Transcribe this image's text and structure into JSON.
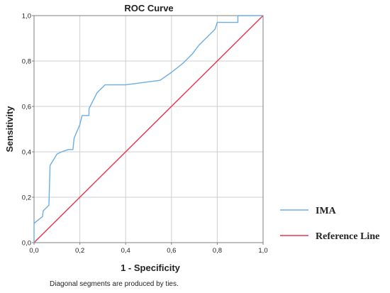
{
  "chart_data": {
    "type": "line",
    "title": "ROC Curve",
    "xlabel": "1 - Specificity",
    "ylabel": "Sensitivity",
    "xlim": [
      0,
      1
    ],
    "ylim": [
      0,
      1
    ],
    "grid": true,
    "legend_position": "right",
    "x_ticks": [
      "0,0",
      "0,2",
      "0,4",
      "0,6",
      "0,8",
      "1,0"
    ],
    "y_ticks": [
      "0,0",
      "0,2",
      "0,4",
      "0,6",
      "0,8",
      "1,0"
    ],
    "series": [
      {
        "name": "IMA",
        "color": "#6aaee6",
        "points": [
          [
            0.0,
            0.0
          ],
          [
            0.0,
            0.085
          ],
          [
            0.037,
            0.115
          ],
          [
            0.04,
            0.14
          ],
          [
            0.065,
            0.165
          ],
          [
            0.07,
            0.34
          ],
          [
            0.1,
            0.39
          ],
          [
            0.12,
            0.4
          ],
          [
            0.15,
            0.41
          ],
          [
            0.17,
            0.41
          ],
          [
            0.175,
            0.46
          ],
          [
            0.2,
            0.52
          ],
          [
            0.21,
            0.56
          ],
          [
            0.24,
            0.56
          ],
          [
            0.24,
            0.59
          ],
          [
            0.275,
            0.66
          ],
          [
            0.31,
            0.695
          ],
          [
            0.4,
            0.695
          ],
          [
            0.55,
            0.715
          ],
          [
            0.6,
            0.75
          ],
          [
            0.65,
            0.79
          ],
          [
            0.69,
            0.83
          ],
          [
            0.72,
            0.87
          ],
          [
            0.79,
            0.94
          ],
          [
            0.8,
            0.97
          ],
          [
            0.89,
            0.97
          ],
          [
            0.89,
            1.0
          ],
          [
            1.0,
            1.0
          ]
        ]
      },
      {
        "name": "Reference Line",
        "color": "#e8334a",
        "points": [
          [
            0,
            0
          ],
          [
            1,
            1
          ]
        ]
      }
    ],
    "footnote": "Diagonal segments are produced by ties."
  }
}
